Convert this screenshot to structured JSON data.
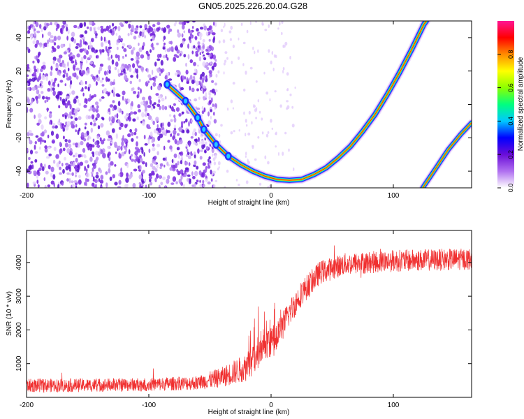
{
  "figure": {
    "title": "GN05.2025.226.20.04.G28"
  },
  "chart_data": [
    {
      "type": "heatmap",
      "xlabel": "Height of straight line (km)",
      "ylabel": "Frequency (Hz)",
      "xlim": [
        -200,
        164
      ],
      "ylim": [
        -50,
        50
      ],
      "xticks": [
        -200,
        -100,
        0,
        100
      ],
      "yticks": [
        -40,
        -20,
        0,
        20,
        40
      ],
      "colorbar": {
        "label": "Normalized spectral amplitude",
        "range": [
          0,
          1
        ],
        "ticks": [
          "0.0",
          "0.2",
          "0.4",
          "0.6",
          "0.8"
        ],
        "colormap": [
          "#ffffff",
          "#b070f0",
          "#6a0dd8",
          "#0000ff",
          "#00c8ff",
          "#00ff7f",
          "#8cff00",
          "#ffff00",
          "#ff8c00",
          "#ff0000",
          "#ff1493"
        ]
      },
      "noise_region": {
        "x_range": [
          -200,
          -45
        ],
        "y_range": [
          -50,
          50
        ]
      },
      "main_ridge": [
        {
          "x": -85,
          "y": 12
        },
        {
          "x": -70,
          "y": 2
        },
        {
          "x": -60,
          "y": -8
        },
        {
          "x": -55,
          "y": -15
        },
        {
          "x": -45,
          "y": -24
        },
        {
          "x": -35,
          "y": -31
        },
        {
          "x": -25,
          "y": -36
        },
        {
          "x": -15,
          "y": -40
        },
        {
          "x": -5,
          "y": -43
        },
        {
          "x": 5,
          "y": -45
        },
        {
          "x": 15,
          "y": -45.5
        },
        {
          "x": 25,
          "y": -45
        },
        {
          "x": 35,
          "y": -42
        },
        {
          "x": 45,
          "y": -38
        },
        {
          "x": 55,
          "y": -32
        },
        {
          "x": 65,
          "y": -25
        },
        {
          "x": 75,
          "y": -16
        },
        {
          "x": 85,
          "y": -6
        },
        {
          "x": 95,
          "y": 6
        },
        {
          "x": 105,
          "y": 19
        },
        {
          "x": 115,
          "y": 33
        },
        {
          "x": 125,
          "y": 48
        },
        {
          "x": 127,
          "y": 50
        }
      ],
      "secondary_ridge": [
        {
          "x": 124,
          "y": -50
        },
        {
          "x": 135,
          "y": -38
        },
        {
          "x": 145,
          "y": -27
        },
        {
          "x": 155,
          "y": -18
        },
        {
          "x": 164,
          "y": -11
        }
      ]
    },
    {
      "type": "line",
      "xlabel": "Height of straight line (km)",
      "ylabel": "SNR (10 * v/v)",
      "xlim": [
        -200,
        164
      ],
      "ylim": [
        0,
        4950
      ],
      "xticks": [
        -200,
        -100,
        0,
        100
      ],
      "yticks": [
        1000,
        2000,
        3000,
        4000
      ],
      "series": [
        {
          "color": "#f03030",
          "envelope": [
            {
              "x": -200,
              "mean": 350,
              "spread": 200
            },
            {
              "x": -150,
              "mean": 360,
              "spread": 200
            },
            {
              "x": -100,
              "mean": 380,
              "spread": 200
            },
            {
              "x": -60,
              "mean": 430,
              "spread": 210
            },
            {
              "x": -40,
              "mean": 600,
              "spread": 300
            },
            {
              "x": -20,
              "mean": 900,
              "spread": 420
            },
            {
              "x": -5,
              "mean": 1400,
              "spread": 500
            },
            {
              "x": 5,
              "mean": 1800,
              "spread": 450
            },
            {
              "x": 15,
              "mean": 2500,
              "spread": 400
            },
            {
              "x": 25,
              "mean": 3100,
              "spread": 380
            },
            {
              "x": 40,
              "mean": 3700,
              "spread": 350
            },
            {
              "x": 60,
              "mean": 3950,
              "spread": 330
            },
            {
              "x": 100,
              "mean": 4050,
              "spread": 330
            },
            {
              "x": 164,
              "mean": 4100,
              "spread": 320
            }
          ]
        }
      ]
    }
  ]
}
